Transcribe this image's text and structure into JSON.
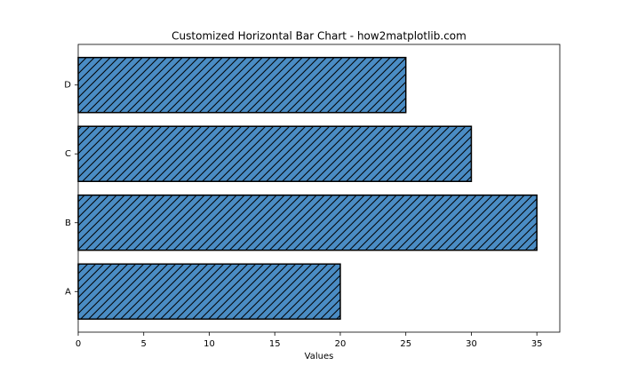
{
  "chart_data": {
    "type": "barh",
    "title": "Customized Horizontal Bar Chart - how2matplotlib.com",
    "x_label": "Values",
    "categories": [
      "A",
      "B",
      "C",
      "D"
    ],
    "values": [
      20,
      35,
      30,
      25
    ],
    "color": "#4a8cc4",
    "edgecolor": "#000000",
    "hatch": "//",
    "xlim": [
      0,
      36.75
    ],
    "xticks": [
      0,
      5,
      10,
      15,
      20,
      25,
      30,
      35
    ],
    "grid": false
  }
}
